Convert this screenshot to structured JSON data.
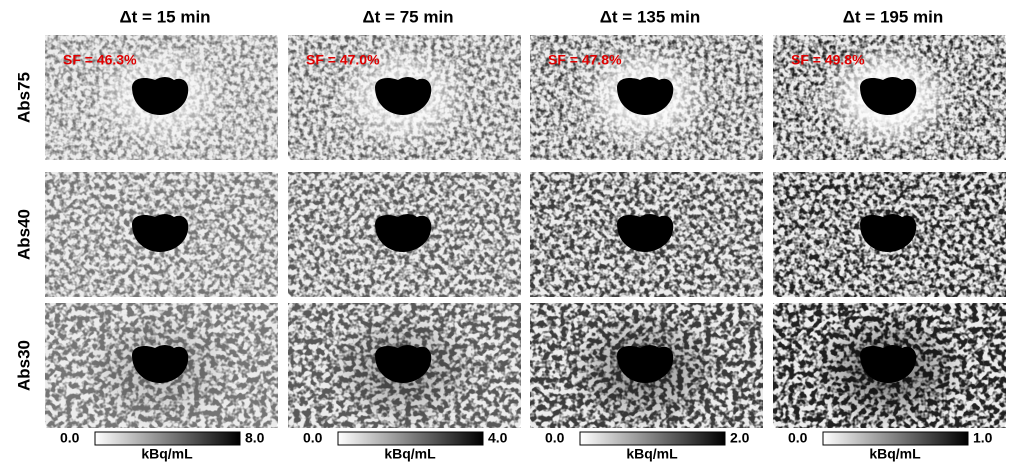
{
  "columns": [
    {
      "title": "Δt = 15 min",
      "sf": "SF = 46.3%",
      "colorbar": {
        "min": "0.0",
        "max": "8.0",
        "unit": "kBq/mL"
      }
    },
    {
      "title": "Δt = 75 min",
      "sf": "SF = 47.0%",
      "colorbar": {
        "min": "0.0",
        "max": "4.0",
        "unit": "kBq/mL"
      }
    },
    {
      "title": "Δt = 135 min",
      "sf": "SF = 47.8%",
      "colorbar": {
        "min": "0.0",
        "max": "2.0",
        "unit": "kBq/mL"
      }
    },
    {
      "title": "Δt = 195 min",
      "sf": "SF = 49.8%",
      "colorbar": {
        "min": "0.0",
        "max": "1.0",
        "unit": "kBq/mL"
      }
    }
  ],
  "rows": [
    {
      "label": "Abs75"
    },
    {
      "label": "Abs40"
    },
    {
      "label": "Abs30"
    }
  ]
}
